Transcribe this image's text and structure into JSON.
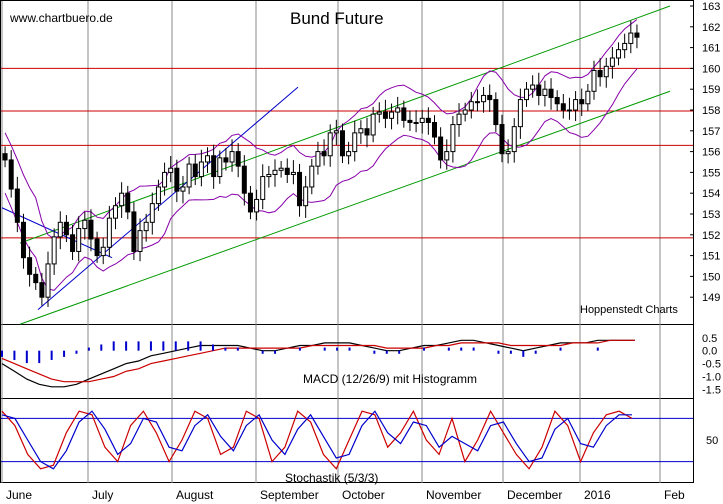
{
  "chart_data": [
    {
      "type": "candlestick",
      "title": "Bund Future",
      "source_label": "www.chartbuero.de",
      "annotation": "Hoppenstedt Charts",
      "ylim": [
        148,
        163
      ],
      "y_ticks": [
        "149",
        "150",
        "151",
        "152",
        "153",
        "154",
        "155",
        "156",
        "157",
        "158",
        "159",
        "160",
        "161",
        "162",
        "163"
      ],
      "x_labels": [
        "June",
        "July",
        "August",
        "September",
        "October",
        "November",
        "December",
        "2016",
        "Feb"
      ],
      "horizontal_lines": [
        160.0,
        157.95,
        156.3,
        151.85
      ],
      "horizontal_line_color": "#cc0000",
      "channel_color": "#009900",
      "trend_color": "#0000cc",
      "band_color": "#8800aa",
      "channel_lines": [
        {
          "x": [
            "June",
            "late January"
          ],
          "y": [
            151.6,
            163.0
          ]
        },
        {
          "x": [
            "June",
            "late January"
          ],
          "y": [
            147.7,
            158.9
          ]
        }
      ],
      "trend_lines": [
        {
          "x": [
            "June",
            "mid July"
          ],
          "y": [
            153.3,
            150.9
          ]
        },
        {
          "x": [
            "mid June",
            "mid September"
          ],
          "y": [
            148.4,
            159.1
          ]
        }
      ],
      "close": [
        155.6,
        154.2,
        152.6,
        150.9,
        150.1,
        149.7,
        149.0,
        150.6,
        151.9,
        152.6,
        152.0,
        151.2,
        152.3,
        152.7,
        151.8,
        151.0,
        151.4,
        152.8,
        153.4,
        154.0,
        153.1,
        151.2,
        152.2,
        152.6,
        153.5,
        154.3,
        155.0,
        155.2,
        154.1,
        154.3,
        155.4,
        154.8,
        155.5,
        155.8,
        154.8,
        155.7,
        155.5,
        156.0,
        155.3,
        154.0,
        153.1,
        153.7,
        154.8,
        154.9,
        155.1,
        155.2,
        154.9,
        155.0,
        153.4,
        154.3,
        155.3,
        156.0,
        155.8,
        156.9,
        157.0,
        155.8,
        156.0,
        156.9,
        157.1,
        156.8,
        157.8,
        157.9,
        157.6,
        157.9,
        158.1,
        157.5,
        157.4,
        157.4,
        157.6,
        157.4,
        156.7,
        155.6,
        156.0,
        157.3,
        157.8,
        158.0,
        158.4,
        158.4,
        158.7,
        158.5,
        157.3,
        155.9,
        156.0,
        157.2,
        158.5,
        159.0,
        159.2,
        158.7,
        159.0,
        158.6,
        158.3,
        158.0,
        158.0,
        158.5,
        158.3,
        158.9,
        159.9,
        159.6,
        160.1,
        160.5,
        160.9,
        161.2,
        161.7,
        161.5
      ]
    },
    {
      "type": "line",
      "title": "MACD (12/26/9) mit Histogramm",
      "ylim": [
        -1.6,
        0.8
      ],
      "y_ticks": [
        "0.5",
        "0.0",
        "-0.5",
        "-1.0",
        "-1.5"
      ],
      "series": [
        {
          "values": [
            -0.5,
            -0.8,
            -1.1,
            -1.3,
            -1.4,
            -1.4,
            -1.3,
            -1.1,
            -0.9,
            -0.7,
            -0.5,
            -0.4,
            -0.2,
            -0.1,
            0.0,
            0.1,
            0.2,
            0.2,
            0.2,
            0.2,
            0.1,
            0.0,
            0.0,
            0.1,
            0.2,
            0.2,
            0.3,
            0.3,
            0.3,
            0.2,
            0.1,
            0.0,
            0.0,
            0.1,
            0.2,
            0.2,
            0.3,
            0.4,
            0.4,
            0.3,
            0.2,
            0.1,
            0.0,
            0.1,
            0.2,
            0.3,
            0.3,
            0.3,
            0.4,
            0.4,
            0.4,
            0.4
          ]
        },
        {
          "values": [
            -0.3,
            -0.5,
            -0.7,
            -0.9,
            -1.1,
            -1.2,
            -1.2,
            -1.2,
            -1.1,
            -1.0,
            -0.8,
            -0.7,
            -0.5,
            -0.4,
            -0.3,
            -0.2,
            -0.1,
            0.0,
            0.1,
            0.1,
            0.1,
            0.1,
            0.1,
            0.1,
            0.1,
            0.2,
            0.2,
            0.2,
            0.2,
            0.2,
            0.2,
            0.1,
            0.1,
            0.1,
            0.1,
            0.2,
            0.2,
            0.3,
            0.3,
            0.3,
            0.3,
            0.2,
            0.2,
            0.2,
            0.2,
            0.2,
            0.3,
            0.3,
            0.3,
            0.4,
            0.4,
            0.4
          ]
        }
      ]
    },
    {
      "type": "line",
      "title": "Stochastik (5/3/3)",
      "ylim": [
        0,
        100
      ],
      "y_ticks": [
        "50"
      ],
      "reference_levels": [
        80,
        20
      ],
      "series": [
        {
          "values": [
            90,
            70,
            30,
            10,
            15,
            60,
            90,
            85,
            40,
            20,
            70,
            90,
            60,
            20,
            50,
            90,
            80,
            30,
            40,
            90,
            80,
            20,
            40,
            90,
            75,
            30,
            10,
            50,
            90,
            85,
            40,
            60,
            90,
            50,
            30,
            80,
            20,
            50,
            90,
            60,
            30,
            10,
            40,
            90,
            70,
            20,
            60,
            85,
            90,
            80
          ]
        },
        {
          "values": [
            85,
            80,
            50,
            20,
            10,
            35,
            75,
            90,
            65,
            30,
            45,
            80,
            75,
            40,
            35,
            70,
            85,
            55,
            35,
            70,
            85,
            50,
            30,
            65,
            85,
            55,
            25,
            30,
            70,
            90,
            60,
            45,
            75,
            70,
            40,
            55,
            45,
            35,
            70,
            75,
            45,
            20,
            25,
            65,
            80,
            45,
            40,
            70,
            85,
            85
          ]
        }
      ]
    }
  ]
}
